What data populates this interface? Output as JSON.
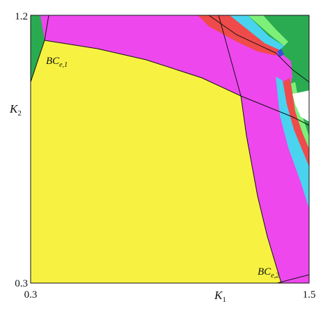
{
  "chart_data": {
    "type": "heatmap",
    "title": "",
    "x_axis": {
      "symbol": "K",
      "subscript": "1",
      "range": [
        0.3,
        1.5
      ],
      "tick_labels": [
        "0.3",
        "1.5"
      ]
    },
    "y_axis": {
      "symbol": "K",
      "subscript": "2",
      "range": [
        0.3,
        1.2
      ],
      "tick_labels": [
        "0.3",
        "1.2"
      ]
    },
    "grid": false,
    "colors": {
      "yellow": "#f7f241",
      "magenta": "#ee47ee",
      "green": "#2aab52",
      "red": "#ef4b4b",
      "cyan": "#49d3ef",
      "light_green": "#7ef07a",
      "blue": "#3a4fd8",
      "white": "#ffffff",
      "curve": "#111111"
    },
    "annotations": [
      {
        "base": "BC",
        "sub": "e,1"
      },
      {
        "base": "BC",
        "sub": "e,2"
      }
    ]
  }
}
